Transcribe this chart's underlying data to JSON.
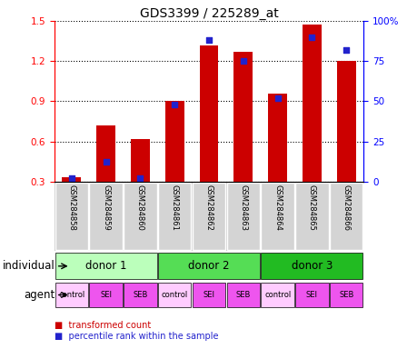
{
  "title": "GDS3399 / 225289_at",
  "samples": [
    "GSM284858",
    "GSM284859",
    "GSM284860",
    "GSM284861",
    "GSM284862",
    "GSM284863",
    "GSM284864",
    "GSM284865",
    "GSM284866"
  ],
  "transformed_count": [
    0.33,
    0.72,
    0.62,
    0.9,
    1.32,
    1.27,
    0.96,
    1.47,
    1.2
  ],
  "percentile_rank": [
    2,
    12,
    2,
    48,
    88,
    75,
    52,
    90,
    82
  ],
  "ylim_left": [
    0.3,
    1.5
  ],
  "ylim_right": [
    0,
    100
  ],
  "yticks_left": [
    0.3,
    0.6,
    0.9,
    1.2,
    1.5
  ],
  "yticks_right": [
    0,
    25,
    50,
    75,
    100
  ],
  "bar_color": "#cc0000",
  "dot_color": "#2222cc",
  "bar_width": 0.55,
  "individual_labels": [
    "donor 1",
    "donor 2",
    "donor 3"
  ],
  "individual_colors": [
    "#bbffbb",
    "#55dd55",
    "#22bb22"
  ],
  "agent_labels": [
    "control",
    "SEI",
    "SEB",
    "control",
    "SEI",
    "SEB",
    "control",
    "SEI",
    "SEB"
  ],
  "agent_bg_colors": [
    "#ffccff",
    "#ee55ee",
    "#ee55ee",
    "#ffccff",
    "#ee55ee",
    "#ee55ee",
    "#ffccff",
    "#ee55ee",
    "#ee55ee"
  ],
  "legend_red_label": "transformed count",
  "legend_blue_label": "percentile rank within the sample",
  "title_fontsize": 10,
  "tick_fontsize": 7.5,
  "label_fontsize": 8.5
}
